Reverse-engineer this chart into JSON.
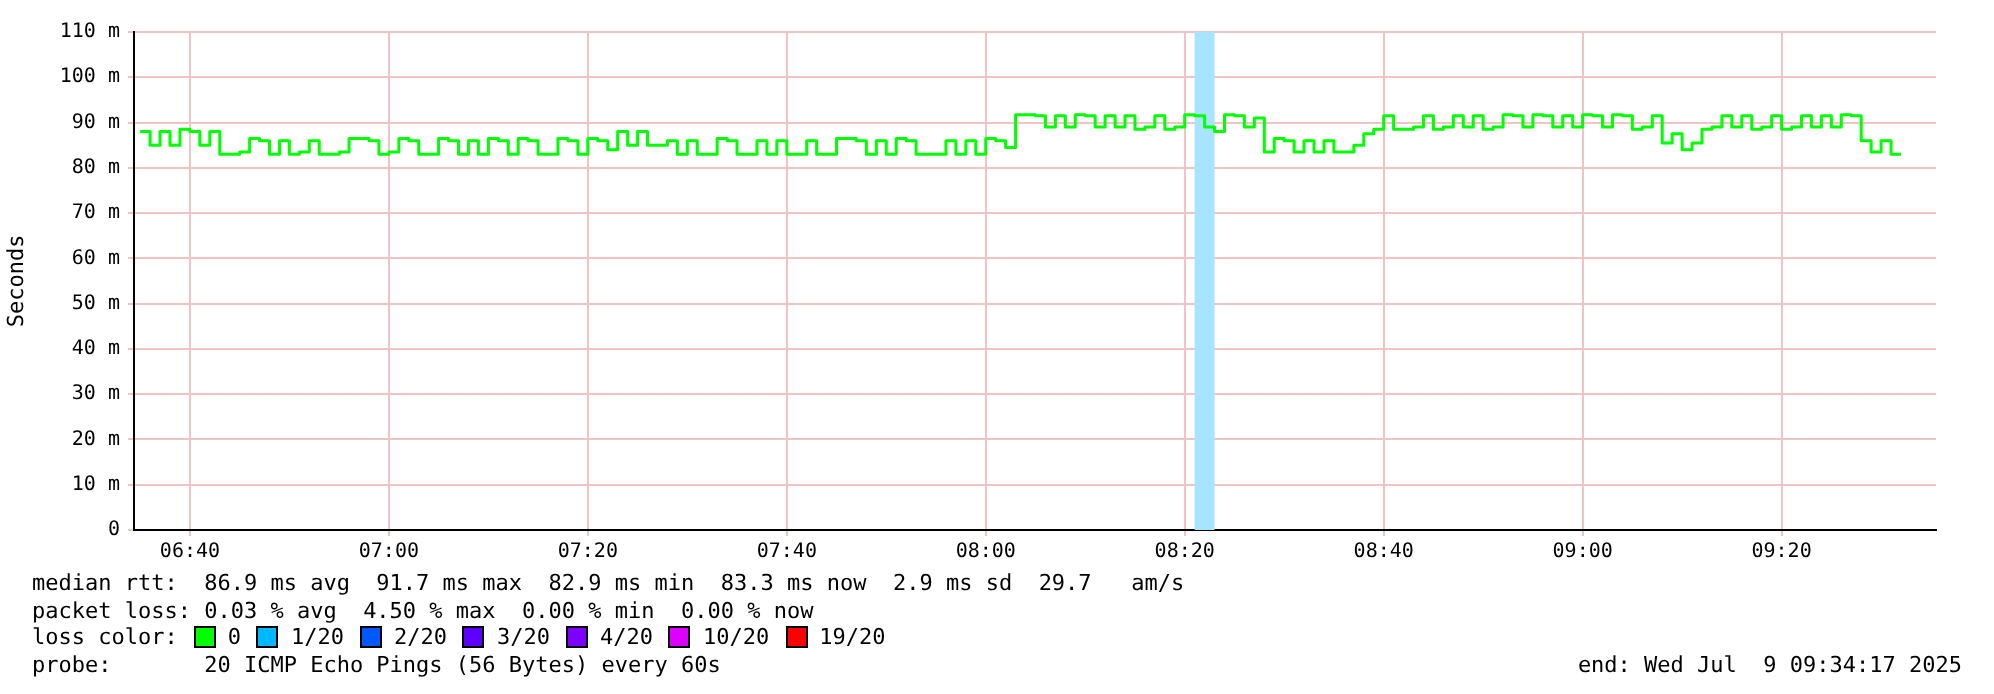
{
  "chart_data": {
    "type": "step",
    "ylabel": "Seconds",
    "legend_title": "loss color:",
    "legend": "bottom",
    "grid": true,
    "marker": "none",
    "line_style": "solid",
    "x": [
      6.5833,
      6.6,
      6.6167,
      6.6333,
      6.65,
      6.6667,
      6.6833,
      6.7,
      6.7167,
      6.7333,
      6.75,
      6.7667,
      6.7833,
      6.8,
      6.8167,
      6.8333,
      6.85,
      6.8667,
      6.8833,
      6.9,
      6.9167,
      6.9333,
      6.95,
      6.9667,
      6.9833,
      7.0,
      7.0167,
      7.0333,
      7.05,
      7.0667,
      7.0833,
      7.1,
      7.1167,
      7.1333,
      7.15,
      7.1667,
      7.1833,
      7.2,
      7.2167,
      7.2333,
      7.25,
      7.2667,
      7.2833,
      7.3,
      7.3167,
      7.3333,
      7.35,
      7.3667,
      7.3833,
      7.4,
      7.4167,
      7.4333,
      7.45,
      7.4667,
      7.4833,
      7.5,
      7.5167,
      7.5333,
      7.55,
      7.5667,
      7.5833,
      7.6,
      7.6167,
      7.6333,
      7.65,
      7.6667,
      7.6833,
      7.7,
      7.7167,
      7.7333,
      7.75,
      7.7667,
      7.7833,
      7.8,
      7.8167,
      7.8333,
      7.85,
      7.8667,
      7.8833,
      7.9,
      7.9167,
      7.9333,
      7.95,
      7.9667,
      7.9833,
      8.0,
      8.0167,
      8.0333,
      8.05,
      8.0667,
      8.0833,
      8.1,
      8.1167,
      8.1333,
      8.15,
      8.1667,
      8.1833,
      8.2,
      8.2167,
      8.2333,
      8.25,
      8.2667,
      8.2833,
      8.3,
      8.3167,
      8.3333,
      8.35,
      8.3667,
      8.3833,
      8.4,
      8.4167,
      8.4333,
      8.45,
      8.4667,
      8.4833,
      8.5,
      8.5167,
      8.5333,
      8.55,
      8.5667,
      8.5833,
      8.6,
      8.6167,
      8.6333,
      8.65,
      8.6667,
      8.6833,
      8.7,
      8.7167,
      8.7333,
      8.75,
      8.7667,
      8.7833,
      8.8,
      8.8167,
      8.8333,
      8.85,
      8.8667,
      8.8833,
      8.9,
      8.9167,
      8.9333,
      8.95,
      8.9667,
      8.9833,
      9.0,
      9.0167,
      9.0333,
      9.05,
      9.0667,
      9.0833,
      9.1,
      9.1167,
      9.1333,
      9.15,
      9.1667,
      9.1833,
      9.2,
      9.2167,
      9.2333,
      9.25,
      9.2667,
      9.2833,
      9.3,
      9.3167,
      9.3333,
      9.35,
      9.3667,
      9.3833,
      9.4,
      9.4167,
      9.4333,
      9.45,
      9.4667,
      9.4833,
      9.5,
      9.5167,
      9.5333
    ],
    "series": [
      {
        "name": "0",
        "color": "#00ff00",
        "values": [
          88,
          85,
          88,
          85,
          88.5,
          88,
          85,
          88,
          83,
          83,
          83.5,
          86.5,
          86,
          83,
          86,
          83,
          83.5,
          86,
          83,
          83,
          83.5,
          86.5,
          86.5,
          86,
          83,
          83.5,
          86.5,
          86,
          83,
          83,
          86.5,
          86,
          83,
          86,
          83,
          86.5,
          86,
          83,
          86.5,
          86,
          83,
          83,
          86.5,
          86,
          83,
          86.5,
          86,
          84,
          88,
          85,
          88,
          85,
          85,
          86,
          83,
          86,
          83,
          83,
          86.5,
          86,
          83,
          83,
          86,
          83,
          86,
          83,
          83,
          86,
          83,
          83,
          86.5,
          86.5,
          86,
          83,
          86,
          83,
          86.5,
          86,
          83,
          83,
          83,
          86,
          83,
          86,
          83,
          86.5,
          86,
          84.5,
          91.7,
          91.7,
          91.5,
          89,
          91.5,
          89,
          91.7,
          91.5,
          89,
          91.5,
          89,
          91.5,
          88.5,
          89,
          91.5,
          88.5,
          89,
          91.7,
          91.5,
          89,
          88,
          91.7,
          91.5,
          89,
          91,
          83.5,
          86.5,
          86,
          83.5,
          86,
          83.5,
          86,
          83.5,
          83.5,
          85,
          87.5,
          88.5,
          91.5,
          88.5,
          88.5,
          89,
          91.5,
          88.5,
          89,
          91.5,
          89,
          91.5,
          88.5,
          89,
          91.7,
          91.5,
          89,
          91.7,
          91.5,
          89,
          91.5,
          89,
          91.7,
          91.5,
          89,
          91.7,
          91.5,
          88.5,
          89,
          91.5,
          85.5,
          87.5,
          84,
          85.5,
          88.5,
          89,
          91.5,
          89,
          91.5,
          88.5,
          89,
          91.5,
          88.5,
          89,
          91.5,
          89,
          91.5,
          89,
          91.7,
          91.5,
          86,
          83.5,
          86,
          83,
          83
        ]
      },
      {
        "name": "1/20",
        "color": "#00b8ff",
        "values": [
          null,
          null,
          null,
          null,
          null,
          null,
          null,
          null,
          null,
          null,
          null,
          null,
          null,
          null,
          null,
          null,
          null,
          null,
          null,
          null,
          null,
          null,
          null,
          null,
          null,
          null,
          null,
          null,
          null,
          null,
          null,
          null,
          null,
          null,
          null,
          null,
          null,
          null,
          null,
          null,
          null,
          null,
          null,
          null,
          null,
          null,
          null,
          null,
          null,
          null,
          null,
          null,
          null,
          null,
          null,
          null,
          null,
          null,
          null,
          null,
          null,
          null,
          null,
          null,
          null,
          null,
          null,
          null,
          null,
          null,
          null,
          null,
          null,
          null,
          null,
          null,
          null,
          null,
          null,
          null,
          null,
          null,
          null,
          null,
          null,
          null,
          null,
          null,
          null,
          null,
          null,
          null,
          null,
          null,
          null,
          null,
          null,
          null,
          null,
          null,
          null,
          null,
          null,
          null,
          null,
          null,
          null,
          null,
          null,
          null,
          null,
          null,
          null,
          null,
          null,
          null,
          null,
          null,
          null,
          null,
          null,
          null,
          null,
          null,
          null,
          null,
          null,
          null,
          null,
          null,
          null,
          null,
          null,
          null,
          null,
          null,
          null,
          null,
          null,
          null,
          null,
          null,
          null,
          null,
          null,
          null,
          null,
          null,
          null,
          null,
          null,
          null,
          null,
          null,
          null,
          null,
          null,
          null,
          null,
          null,
          null,
          null,
          null,
          null,
          null,
          null,
          null,
          null,
          null,
          null,
          null,
          null,
          null,
          null,
          null,
          null,
          null,
          null
        ]
      },
      {
        "name": "2/20",
        "color": "#0059ff",
        "values": [
          null,
          null,
          null,
          null,
          null,
          null,
          null,
          null,
          null,
          null,
          null,
          null,
          null,
          null,
          null,
          null,
          null,
          null,
          null,
          null,
          null,
          null,
          null,
          null,
          null,
          null,
          null,
          null,
          null,
          null,
          null,
          null,
          null,
          null,
          null,
          null,
          null,
          null,
          null,
          null,
          null,
          null,
          null,
          null,
          null,
          null,
          null,
          null,
          null,
          null,
          null,
          null,
          null,
          null,
          null,
          null,
          null,
          null,
          null,
          null,
          null,
          null,
          null,
          null,
          null,
          null,
          null,
          null,
          null,
          null,
          null,
          null,
          null,
          null,
          null,
          null,
          null,
          null,
          null,
          null,
          null,
          null,
          null,
          null,
          null,
          null,
          null,
          null,
          null,
          null,
          null,
          null,
          null,
          null,
          null,
          null,
          null,
          null,
          null,
          null,
          null,
          null,
          null,
          null,
          null,
          null,
          null,
          null,
          null,
          null,
          null,
          null,
          null,
          null,
          null,
          null,
          null,
          null,
          null,
          null,
          null,
          null,
          null,
          null,
          null,
          null,
          null,
          null,
          null,
          null,
          null,
          null,
          null,
          null,
          null,
          null,
          null,
          null,
          null,
          null,
          null,
          null,
          null,
          null,
          null,
          null,
          null,
          null,
          null,
          null,
          null,
          null,
          null,
          null,
          null,
          null,
          null,
          null,
          null,
          null,
          null,
          null,
          null,
          null,
          null,
          null,
          null,
          null,
          null,
          null,
          null,
          null,
          null,
          null,
          null,
          null,
          null,
          null
        ]
      },
      {
        "name": "3/20",
        "color": "#5e00ff",
        "values": [
          null,
          null,
          null,
          null,
          null,
          null,
          null,
          null,
          null,
          null,
          null,
          null,
          null,
          null,
          null,
          null,
          null,
          null,
          null,
          null,
          null,
          null,
          null,
          null,
          null,
          null,
          null,
          null,
          null,
          null,
          null,
          null,
          null,
          null,
          null,
          null,
          null,
          null,
          null,
          null,
          null,
          null,
          null,
          null,
          null,
          null,
          null,
          null,
          null,
          null,
          null,
          null,
          null,
          null,
          null,
          null,
          null,
          null,
          null,
          null,
          null,
          null,
          null,
          null,
          null,
          null,
          null,
          null,
          null,
          null,
          null,
          null,
          null,
          null,
          null,
          null,
          null,
          null,
          null,
          null,
          null,
          null,
          null,
          null,
          null,
          null,
          null,
          null,
          null,
          null,
          null,
          null,
          null,
          null,
          null,
          null,
          null,
          null,
          null,
          null,
          null,
          null,
          null,
          null,
          null,
          null,
          null,
          null,
          null,
          null,
          null,
          null,
          null,
          null,
          null,
          null,
          null,
          null,
          null,
          null,
          null,
          null,
          null,
          null,
          null,
          null,
          null,
          null,
          null,
          null,
          null,
          null,
          null,
          null,
          null,
          null,
          null,
          null,
          null,
          null,
          null,
          null,
          null,
          null,
          null,
          null,
          null,
          null,
          null,
          null,
          null,
          null,
          null,
          null,
          null,
          null,
          null,
          null,
          null,
          null,
          null,
          null,
          null,
          null,
          null,
          null,
          null,
          null,
          null,
          null,
          null,
          null,
          null,
          null,
          null,
          null,
          null,
          null
        ]
      },
      {
        "name": "4/20",
        "color": "#7e00ff",
        "values": [
          null,
          null,
          null,
          null,
          null,
          null,
          null,
          null,
          null,
          null,
          null,
          null,
          null,
          null,
          null,
          null,
          null,
          null,
          null,
          null,
          null,
          null,
          null,
          null,
          null,
          null,
          null,
          null,
          null,
          null,
          null,
          null,
          null,
          null,
          null,
          null,
          null,
          null,
          null,
          null,
          null,
          null,
          null,
          null,
          null,
          null,
          null,
          null,
          null,
          null,
          null,
          null,
          null,
          null,
          null,
          null,
          null,
          null,
          null,
          null,
          null,
          null,
          null,
          null,
          null,
          null,
          null,
          null,
          null,
          null,
          null,
          null,
          null,
          null,
          null,
          null,
          null,
          null,
          null,
          null,
          null,
          null,
          null,
          null,
          null,
          null,
          null,
          null,
          null,
          null,
          null,
          null,
          null,
          null,
          null,
          null,
          null,
          null,
          null,
          null,
          null,
          null,
          null,
          null,
          null,
          null,
          null,
          null,
          null,
          null,
          null,
          null,
          null,
          null,
          null,
          null,
          null,
          null,
          null,
          null,
          null,
          null,
          null,
          null,
          null,
          null,
          null,
          null,
          null,
          null,
          null,
          null,
          null,
          null,
          null,
          null,
          null,
          null,
          null,
          null,
          null,
          null,
          null,
          null,
          null,
          null,
          null,
          null,
          null,
          null,
          null,
          null,
          null,
          null,
          null,
          null,
          null,
          null,
          null,
          null,
          null,
          null,
          null,
          null,
          null,
          null,
          null,
          null,
          null,
          null,
          null,
          null,
          null,
          null,
          null,
          null,
          null,
          null
        ]
      },
      {
        "name": "10/20",
        "color": "#dd00ff",
        "values": [
          null,
          null,
          null,
          null,
          null,
          null,
          null,
          null,
          null,
          null,
          null,
          null,
          null,
          null,
          null,
          null,
          null,
          null,
          null,
          null,
          null,
          null,
          null,
          null,
          null,
          null,
          null,
          null,
          null,
          null,
          null,
          null,
          null,
          null,
          null,
          null,
          null,
          null,
          null,
          null,
          null,
          null,
          null,
          null,
          null,
          null,
          null,
          null,
          null,
          null,
          null,
          null,
          null,
          null,
          null,
          null,
          null,
          null,
          null,
          null,
          null,
          null,
          null,
          null,
          null,
          null,
          null,
          null,
          null,
          null,
          null,
          null,
          null,
          null,
          null,
          null,
          null,
          null,
          null,
          null,
          null,
          null,
          null,
          null,
          null,
          null,
          null,
          null,
          null,
          null,
          null,
          null,
          null,
          null,
          null,
          null,
          null,
          null,
          null,
          null,
          null,
          null,
          null,
          null,
          null,
          null,
          null,
          null,
          null,
          null,
          null,
          null,
          null,
          null,
          null,
          null,
          null,
          null,
          null,
          null,
          null,
          null,
          null,
          null,
          null,
          null,
          null,
          null,
          null,
          null,
          null,
          null,
          null,
          null,
          null,
          null,
          null,
          null,
          null,
          null,
          null,
          null,
          null,
          null,
          null,
          null,
          null,
          null,
          null,
          null,
          null,
          null,
          null,
          null,
          null,
          null,
          null,
          null,
          null,
          null,
          null,
          null,
          null,
          null,
          null,
          null,
          null,
          null,
          null,
          null,
          null,
          null,
          null,
          null,
          null,
          null,
          null,
          null
        ]
      },
      {
        "name": "19/20",
        "color": "#ff0000",
        "values": [
          null,
          null,
          null,
          null,
          null,
          null,
          null,
          null,
          null,
          null,
          null,
          null,
          null,
          null,
          null,
          null,
          null,
          null,
          null,
          null,
          null,
          null,
          null,
          null,
          null,
          null,
          null,
          null,
          null,
          null,
          null,
          null,
          null,
          null,
          null,
          null,
          null,
          null,
          null,
          null,
          null,
          null,
          null,
          null,
          null,
          null,
          null,
          null,
          null,
          null,
          null,
          null,
          null,
          null,
          null,
          null,
          null,
          null,
          null,
          null,
          null,
          null,
          null,
          null,
          null,
          null,
          null,
          null,
          null,
          null,
          null,
          null,
          null,
          null,
          null,
          null,
          null,
          null,
          null,
          null,
          null,
          null,
          null,
          null,
          null,
          null,
          null,
          null,
          null,
          null,
          null,
          null,
          null,
          null,
          null,
          null,
          null,
          null,
          null,
          null,
          null,
          null,
          null,
          null,
          null,
          null,
          null,
          null,
          null,
          null,
          null,
          null,
          null,
          null,
          null,
          null,
          null,
          null,
          null,
          null,
          null,
          null,
          null,
          null,
          null,
          null,
          null,
          null,
          null,
          null,
          null,
          null,
          null,
          null,
          null,
          null,
          null,
          null,
          null,
          null,
          null,
          null,
          null,
          null,
          null,
          null,
          null,
          null,
          null,
          null,
          null,
          null,
          null,
          null,
          null,
          null,
          null,
          null,
          null,
          null,
          null,
          null,
          null,
          null,
          null,
          null,
          null,
          null,
          null,
          null,
          null,
          null,
          null,
          null,
          null,
          null,
          null,
          null
        ]
      }
    ],
    "bands": [
      {
        "axis": "x",
        "from": 8.35,
        "to": 8.3833,
        "color": "#a6e4ff"
      }
    ],
    "xlim": [
      6.573,
      9.592
    ],
    "xticks": [
      {
        "value": 6.6667,
        "label": "06:40"
      },
      {
        "value": 7,
        "label": "07:00"
      },
      {
        "value": 7.3333,
        "label": "07:20"
      },
      {
        "value": 7.6667,
        "label": "07:40"
      },
      {
        "value": 8,
        "label": "08:00"
      },
      {
        "value": 8.3333,
        "label": "08:20"
      },
      {
        "value": 8.6667,
        "label": "08:40"
      },
      {
        "value": 9,
        "label": "09:00"
      },
      {
        "value": 9.3333,
        "label": "09:20"
      }
    ],
    "ylim": [
      0,
      110
    ],
    "yticks": [
      0,
      {
        "value": 10,
        "label": "10 m"
      },
      {
        "value": 20,
        "label": "20 m"
      },
      {
        "value": 30,
        "label": "30 m"
      },
      {
        "value": 40,
        "label": "40 m"
      },
      {
        "value": 50,
        "label": "50 m"
      },
      {
        "value": 60,
        "label": "60 m"
      },
      {
        "value": 70,
        "label": "70 m"
      },
      {
        "value": 80,
        "label": "80 m"
      },
      {
        "value": 90,
        "label": "90 m"
      },
      {
        "value": 100,
        "label": "100 m"
      },
      {
        "value": 110,
        "label": "110 m"
      }
    ],
    "annotations": [
      "median rtt:  86.9 ms avg  91.7 ms max  82.9 ms min  83.3 ms now  2.9 ms sd  29.7   am/s",
      "packet loss: 0.03 % avg  4.50 % max  0.00 % min  0.00 % now",
      "probe:       20 ICMP Echo Pings (56 Bytes) every 60s",
      "end: Wed Jul  9 09:34:17 2025"
    ]
  }
}
